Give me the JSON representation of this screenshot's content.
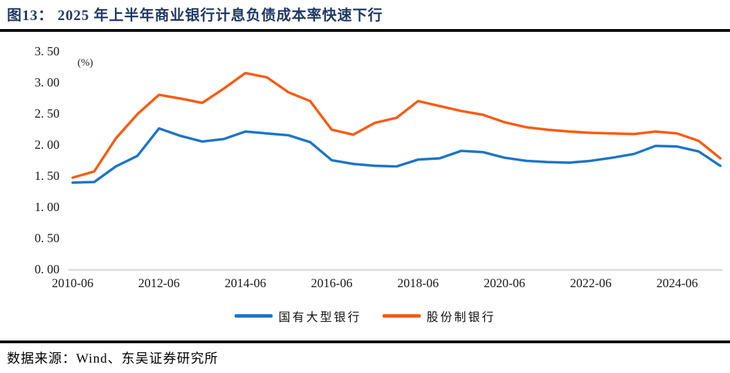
{
  "figure": {
    "title": "图13： 2025 年上半年商业银行计息负债成本率快速下行",
    "source": "数据来源：Wind、东吴证券研究所"
  },
  "chart_data": {
    "type": "line",
    "title": "2025 年上半年商业银行计息负债成本率快速下行",
    "ylabel": "",
    "xlabel": "",
    "y_axis": {
      "unit": "(%)",
      "min": 0,
      "max": 3.5,
      "ticks": [
        {
          "label": "0. 00",
          "value": 0.0
        },
        {
          "label": "0. 50",
          "value": 0.5
        },
        {
          "label": "1. 00",
          "value": 1.0
        },
        {
          "label": "1. 50",
          "value": 1.5
        },
        {
          "label": "2. 00",
          "value": 2.0
        },
        {
          "label": "2. 50",
          "value": 2.5
        },
        {
          "label": "3. 00",
          "value": 3.0
        },
        {
          "label": "3. 50",
          "value": 3.5
        }
      ]
    },
    "x_axis": {
      "ticks": [
        {
          "label": "2010-06",
          "index": 0
        },
        {
          "label": "2012-06",
          "index": 4
        },
        {
          "label": "2014-06",
          "index": 8
        },
        {
          "label": "2016-06",
          "index": 12
        },
        {
          "label": "2018-06",
          "index": 16
        },
        {
          "label": "2020-06",
          "index": 20
        },
        {
          "label": "2022-06",
          "index": 24
        },
        {
          "label": "2024-06",
          "index": 28
        }
      ]
    },
    "x": [
      "2010-06",
      "2010-12",
      "2011-06",
      "2011-12",
      "2012-06",
      "2012-12",
      "2013-06",
      "2013-12",
      "2014-06",
      "2014-12",
      "2015-06",
      "2015-12",
      "2016-06",
      "2016-12",
      "2017-06",
      "2017-12",
      "2018-06",
      "2018-12",
      "2019-06",
      "2019-12",
      "2020-06",
      "2020-12",
      "2021-06",
      "2021-12",
      "2022-06",
      "2022-12",
      "2023-06",
      "2023-12",
      "2024-06",
      "2024-12",
      "2025-06"
    ],
    "series": [
      {
        "name": "国有大型银行",
        "key": "state-owned-large-banks",
        "color": "#1B75C8",
        "values": [
          1.39,
          1.4,
          1.65,
          1.82,
          2.26,
          2.14,
          2.05,
          2.09,
          2.21,
          2.18,
          2.15,
          2.04,
          1.75,
          1.69,
          1.66,
          1.65,
          1.76,
          1.78,
          1.9,
          1.88,
          1.79,
          1.74,
          1.72,
          1.71,
          1.74,
          1.79,
          1.85,
          1.98,
          1.97,
          1.89,
          1.66
        ]
      },
      {
        "name": "股份制银行",
        "key": "joint-stock-banks",
        "color": "#FA5A0E",
        "values": [
          1.47,
          1.57,
          2.1,
          2.49,
          2.8,
          2.74,
          2.67,
          2.9,
          3.15,
          3.08,
          2.84,
          2.7,
          2.24,
          2.16,
          2.35,
          2.43,
          2.7,
          2.62,
          2.54,
          2.48,
          2.36,
          2.28,
          2.24,
          2.21,
          2.19,
          2.18,
          2.17,
          2.21,
          2.18,
          2.06,
          1.78
        ]
      }
    ],
    "legend_position": "bottom",
    "grid": false
  }
}
